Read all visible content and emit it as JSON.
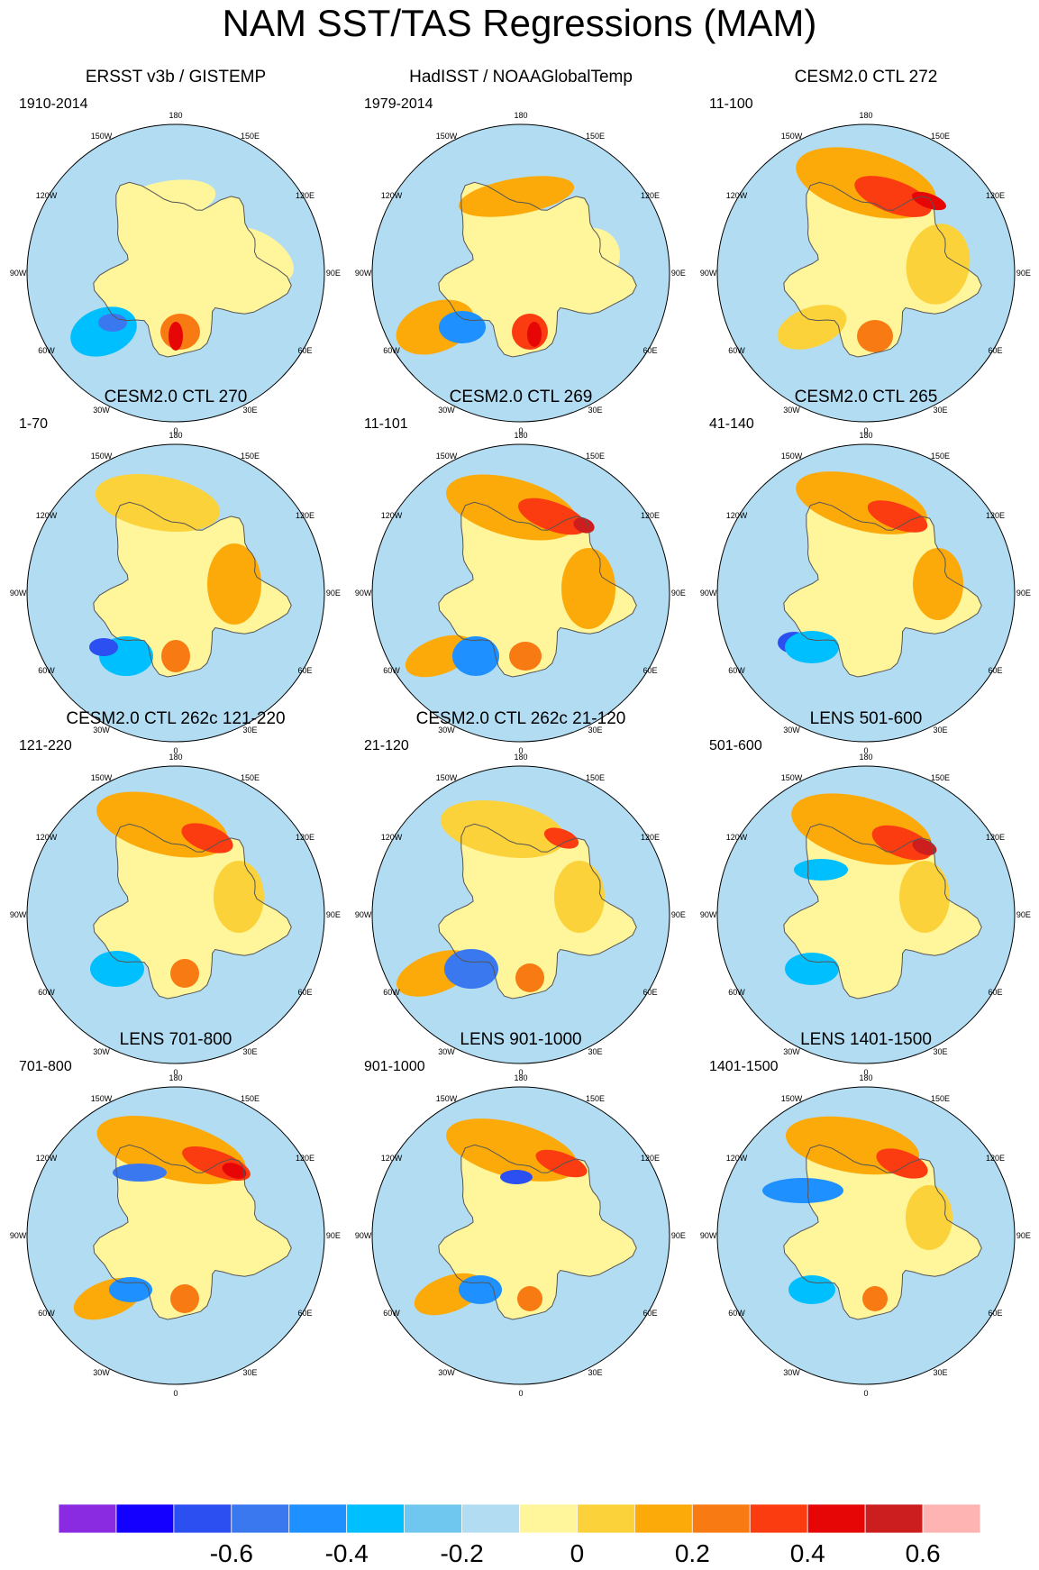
{
  "figure_title": "NAM SST/TAS Regressions (MAM)",
  "lon_labels": [
    "180",
    "150W",
    "150E",
    "120W",
    "120E",
    "90W",
    "90E",
    "60W",
    "60E",
    "30W",
    "30E",
    "0"
  ],
  "panels": [
    {
      "title": "ERSST v3b / GISTEMP",
      "period": "1910-2014"
    },
    {
      "title": "HadISST / NOAAGlobalTemp",
      "period": "1979-2014"
    },
    {
      "title": "CESM2.0 CTL 272",
      "period": "11-100"
    },
    {
      "title": "CESM2.0 CTL 270",
      "period": "1-70"
    },
    {
      "title": "CESM2.0 CTL 269",
      "period": "11-101"
    },
    {
      "title": "CESM2.0 CTL 265",
      "period": "41-140"
    },
    {
      "title": "CESM2.0 CTL 262c 121-220",
      "period": "121-220"
    },
    {
      "title": "CESM2.0 CTL 262c 21-120",
      "period": "21-120"
    },
    {
      "title": "LENS 501-600",
      "period": "501-600"
    },
    {
      "title": "LENS 701-800",
      "period": "701-800"
    },
    {
      "title": "LENS 901-1000",
      "period": "901-1000"
    },
    {
      "title": "LENS 1401-1500",
      "period": "1401-1500"
    }
  ],
  "colorbar": {
    "colors": [
      "#8a2be2",
      "#1400ff",
      "#2b4ff0",
      "#3a78f0",
      "#1e90ff",
      "#00bfff",
      "#6fc7f0",
      "#b2dcf2",
      "#fff59a",
      "#fcd23a",
      "#fcaa0a",
      "#f87a12",
      "#fb3c10",
      "#e60606",
      "#cc1e1e",
      "#ffb4b4"
    ],
    "labels": [
      "-0.6",
      "-0.4",
      "-0.2",
      "0",
      "0.2",
      "0.4",
      "0.6"
    ]
  },
  "palette": {
    "ocean_neg": "#b2dcf2",
    "land_pos": "#fff59a",
    "coast": "#555555"
  }
}
